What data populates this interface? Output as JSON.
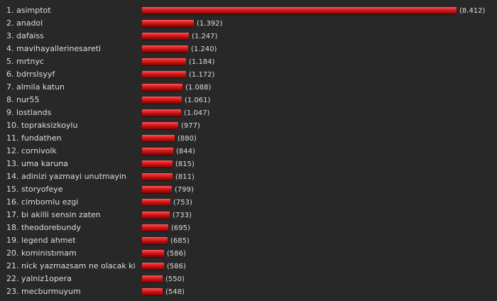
{
  "chart_data": {
    "type": "bar",
    "orientation": "horizontal",
    "categories": [
      "asimptot",
      "anadol",
      "dafaiss",
      "mavihayallerinesareti",
      "mrtnyc",
      "bdrrslsyyf",
      "almila katun",
      "nur55",
      "lostlands",
      "topraksizkoylu",
      "fundathen",
      "cornivolk",
      "uma karuna",
      "adinizi yazmayi unutmayin",
      "storyofeye",
      "cimbomlu ezgi",
      "bi akilli sensin zaten",
      "theodorebundy",
      "legend ahmet",
      "koministımam",
      "nick yazmazsam ne olacak ki",
      "yalniz1opera",
      "mecburmuyum"
    ],
    "ranks": [
      "1.",
      "2.",
      "3.",
      "4.",
      "5.",
      "6.",
      "7.",
      "8.",
      "9.",
      "10.",
      "11.",
      "12.",
      "13.",
      "14.",
      "15.",
      "16.",
      "17.",
      "18.",
      "19.",
      "20.",
      "21.",
      "22.",
      "23."
    ],
    "values": [
      8412,
      1392,
      1247,
      1240,
      1184,
      1172,
      1088,
      1061,
      1047,
      977,
      880,
      844,
      815,
      811,
      799,
      753,
      733,
      695,
      685,
      586,
      586,
      550,
      548
    ],
    "value_labels": [
      "(8.412)",
      "(1.392)",
      "(1.247)",
      "(1.240)",
      "(1.184)",
      "(1.172)",
      "(1.088)",
      "(1.061)",
      "(1.047)",
      "(977)",
      "(880)",
      "(844)",
      "(815)",
      "(811)",
      "(799)",
      "(753)",
      "(733)",
      "(695)",
      "(685)",
      "(586)",
      "(586)",
      "(550)",
      "(548)"
    ],
    "xlim": [
      0,
      8412
    ],
    "grid": false,
    "bar_color": "#d01515",
    "background": "#282828",
    "text_color": "#dddddd"
  }
}
